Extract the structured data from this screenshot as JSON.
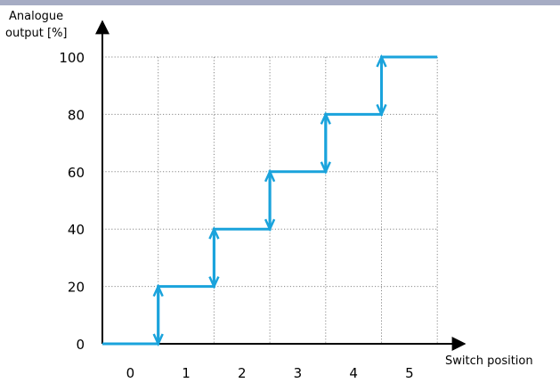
{
  "chart_data": {
    "type": "line",
    "title": "",
    "xlabel": "Switch position",
    "ylabel_lines": [
      "Analogue",
      "output [%]"
    ],
    "x_categories": [
      "0",
      "1",
      "2",
      "3",
      "4",
      "5"
    ],
    "y_ticks": [
      0,
      20,
      40,
      60,
      80,
      100
    ],
    "ylim": [
      0,
      100
    ],
    "grid": true,
    "step_line": {
      "x": [
        0,
        1,
        1,
        2,
        2,
        3,
        3,
        4,
        4,
        5,
        5,
        6
      ],
      "y": [
        0,
        0,
        20,
        20,
        40,
        40,
        60,
        60,
        80,
        80,
        100,
        100
      ]
    },
    "transitions": [
      {
        "between": [
          "0",
          "1"
        ],
        "from": 0,
        "to": 20
      },
      {
        "between": [
          "1",
          "2"
        ],
        "from": 20,
        "to": 40
      },
      {
        "between": [
          "2",
          "3"
        ],
        "from": 40,
        "to": 60
      },
      {
        "between": [
          "3",
          "4"
        ],
        "from": 60,
        "to": 80
      },
      {
        "between": [
          "4",
          "5"
        ],
        "from": 80,
        "to": 100
      }
    ],
    "colors": {
      "line": "#1aa3dc",
      "axis": "#000000",
      "grid": "#888888",
      "top_bar": "#a6acc4"
    }
  }
}
